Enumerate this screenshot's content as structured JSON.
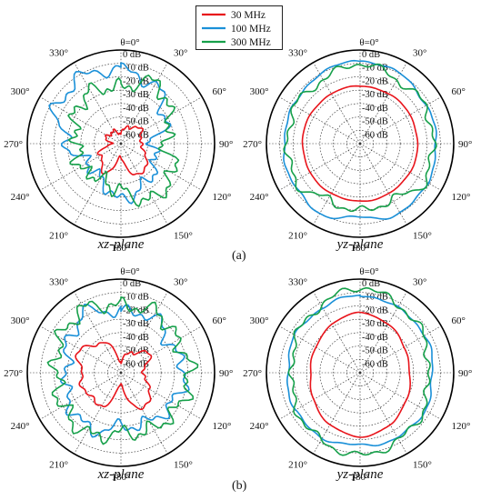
{
  "figure": {
    "legend": [
      {
        "label": "30 MHz",
        "color": "#e8141b"
      },
      {
        "label": "100 MHz",
        "color": "#1a90d8"
      },
      {
        "label": "300 MHz",
        "color": "#16a04a"
      }
    ],
    "panel_labels": [
      "(a)",
      "(b)"
    ]
  },
  "chart_data": [
    {
      "type": "polar",
      "panel": "(a)",
      "plane": "xz-plane",
      "angle_ticks": [
        "θ=0°",
        "30°",
        "60°",
        "90°",
        "120°",
        "150°",
        "180°",
        "210°",
        "240°",
        "270°",
        "300°",
        "330°"
      ],
      "radial_ticks": [
        "0 dB",
        "-10 dB",
        "-20 dB",
        "-30 dB",
        "-40 dB",
        "-50 dB",
        "-60 dB"
      ],
      "rlim_db": [
        -70,
        0
      ],
      "series": [
        {
          "name": "30 MHz",
          "theta_deg": [
            0,
            30,
            60,
            90,
            120,
            150,
            180,
            210,
            240,
            270,
            300,
            330
          ],
          "gain_db": [
            -62,
            -55,
            -52,
            -56,
            -48,
            -42,
            -60,
            -46,
            -52,
            -62,
            -58,
            -60
          ]
        },
        {
          "name": "100 MHz",
          "theta_deg": [
            0,
            30,
            60,
            90,
            120,
            150,
            180,
            210,
            240,
            270,
            300,
            330
          ],
          "gain_db": [
            -15,
            -20,
            -32,
            -48,
            -40,
            -35,
            -28,
            -40,
            -42,
            -30,
            -15,
            -12
          ]
        },
        {
          "name": "300 MHz",
          "theta_deg": [
            0,
            30,
            60,
            90,
            120,
            150,
            180,
            210,
            240,
            270,
            300,
            330
          ],
          "gain_db": [
            -28,
            -18,
            -28,
            -38,
            -25,
            -22,
            -35,
            -40,
            -35,
            -38,
            -30,
            -25
          ]
        }
      ]
    },
    {
      "type": "polar",
      "panel": "(a)",
      "plane": "yz-plane",
      "angle_ticks": [
        "θ=0°",
        "30°",
        "60°",
        "90°",
        "120°",
        "150°",
        "180°",
        "210°",
        "240°",
        "270°",
        "300°",
        "330°"
      ],
      "radial_ticks": [
        "0 dB",
        "-10 dB",
        "-20 dB",
        "-30 dB",
        "-40 dB",
        "-50 dB",
        "-60 dB"
      ],
      "rlim_db": [
        -70,
        0
      ],
      "series": [
        {
          "name": "30 MHz",
          "theta_deg": [
            0,
            30,
            60,
            90,
            120,
            150,
            180,
            210,
            240,
            270,
            300,
            330
          ],
          "gain_db": [
            -27,
            -27,
            -27,
            -27,
            -27,
            -27,
            -27,
            -27,
            -27,
            -27,
            -27,
            -27
          ]
        },
        {
          "name": "100 MHz",
          "theta_deg": [
            0,
            30,
            60,
            90,
            120,
            150,
            180,
            210,
            240,
            270,
            300,
            330
          ],
          "gain_db": [
            -8,
            -10,
            -13,
            -13,
            -12,
            -10,
            -15,
            -10,
            -12,
            -13,
            -13,
            -10
          ]
        },
        {
          "name": "300 MHz",
          "theta_deg": [
            0,
            30,
            60,
            90,
            120,
            150,
            180,
            210,
            240,
            270,
            300,
            330
          ],
          "gain_db": [
            -10,
            -15,
            -14,
            -16,
            -14,
            -22,
            -20,
            -22,
            -14,
            -16,
            -14,
            -15
          ]
        }
      ]
    },
    {
      "type": "polar",
      "panel": "(b)",
      "plane": "xz-plane",
      "angle_ticks": [
        "θ=0°",
        "30°",
        "60°",
        "90°",
        "120°",
        "150°",
        "180°",
        "210°",
        "240°",
        "270°",
        "300°",
        "330°"
      ],
      "radial_ticks": [
        "0 dB",
        "-10 dB",
        "-20 dB",
        "-30 dB",
        "-40 dB",
        "-50 dB",
        "-60 dB"
      ],
      "rlim_db": [
        -70,
        0
      ],
      "series": [
        {
          "name": "30 MHz",
          "theta_deg": [
            0,
            30,
            60,
            90,
            120,
            150,
            180,
            210,
            240,
            270,
            300,
            330
          ],
          "gain_db": [
            -62,
            -52,
            -45,
            -55,
            -45,
            -38,
            -62,
            -42,
            -40,
            -40,
            -35,
            -45
          ]
        },
        {
          "name": "100 MHz",
          "theta_deg": [
            0,
            30,
            60,
            90,
            120,
            150,
            180,
            210,
            240,
            270,
            300,
            330
          ],
          "gain_db": [
            -25,
            -22,
            -28,
            -22,
            -25,
            -28,
            -30,
            -22,
            -25,
            -30,
            -25,
            -18
          ]
        },
        {
          "name": "300 MHz",
          "theta_deg": [
            0,
            30,
            60,
            90,
            120,
            150,
            180,
            210,
            240,
            270,
            300,
            330
          ],
          "gain_db": [
            -20,
            -18,
            -22,
            -18,
            -20,
            -22,
            -25,
            -18,
            -20,
            -22,
            -18,
            -15
          ]
        }
      ]
    },
    {
      "type": "polar",
      "panel": "(b)",
      "plane": "yz-plane",
      "angle_ticks": [
        "θ=0°",
        "30°",
        "60°",
        "90°",
        "120°",
        "150°",
        "180°",
        "210°",
        "240°",
        "270°",
        "300°",
        "330°"
      ],
      "radial_ticks": [
        "0 dB",
        "-10 dB",
        "-20 dB",
        "-30 dB",
        "-40 dB",
        "-50 dB",
        "-60 dB"
      ],
      "rlim_db": [
        -70,
        0
      ],
      "series": [
        {
          "name": "30 MHz",
          "theta_deg": [
            0,
            30,
            60,
            90,
            120,
            150,
            180,
            210,
            240,
            270,
            300,
            330
          ],
          "gain_db": [
            -25,
            -28,
            -32,
            -33,
            -30,
            -25,
            -22,
            -25,
            -30,
            -33,
            -32,
            -28
          ]
        },
        {
          "name": "100 MHz",
          "theta_deg": [
            0,
            30,
            60,
            90,
            120,
            150,
            180,
            210,
            240,
            270,
            300,
            330
          ],
          "gain_db": [
            -12,
            -14,
            -14,
            -16,
            -14,
            -14,
            -16,
            -14,
            -14,
            -16,
            -14,
            -14
          ]
        },
        {
          "name": "300 MHz",
          "theta_deg": [
            0,
            30,
            60,
            90,
            120,
            150,
            180,
            210,
            240,
            270,
            300,
            330
          ],
          "gain_db": [
            -6,
            -12,
            -15,
            -20,
            -15,
            -12,
            -8,
            -12,
            -15,
            -20,
            -15,
            -12
          ]
        }
      ]
    }
  ]
}
